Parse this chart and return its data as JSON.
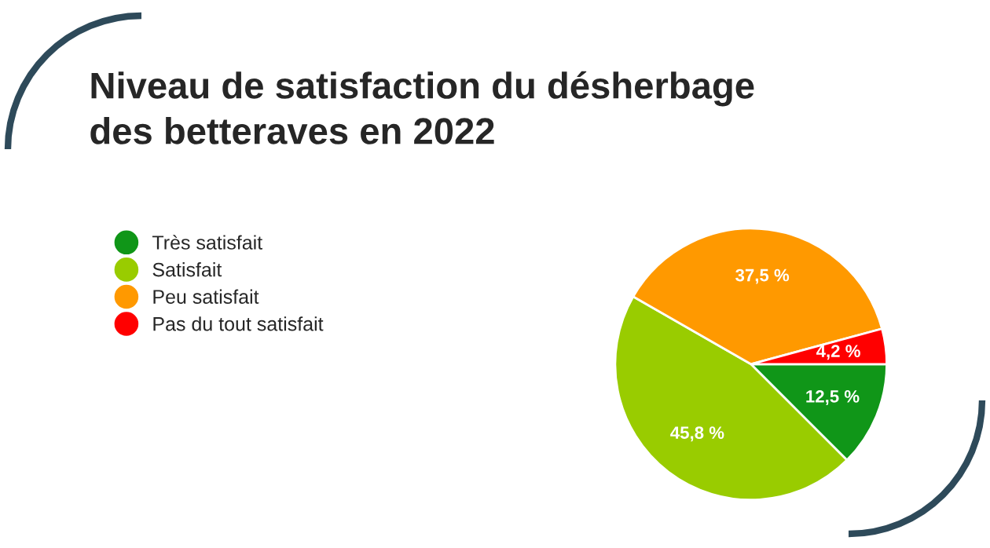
{
  "chart_data": {
    "type": "pie",
    "title": "Niveau de satisfaction du désherbage\ndes betteraves en 2022",
    "categories": [
      "Très satisfait",
      "Satisfait",
      "Peu satisfait",
      "Pas du tout satisfait"
    ],
    "values": [
      12.5,
      45.8,
      37.5,
      4.2
    ],
    "colors": [
      "#109618",
      "#99cc00",
      "#ff9900",
      "#ff0000"
    ],
    "value_labels": [
      "12,5 %",
      "45,8 %",
      "37,5 %",
      "4,2 %"
    ],
    "legend": "left"
  }
}
